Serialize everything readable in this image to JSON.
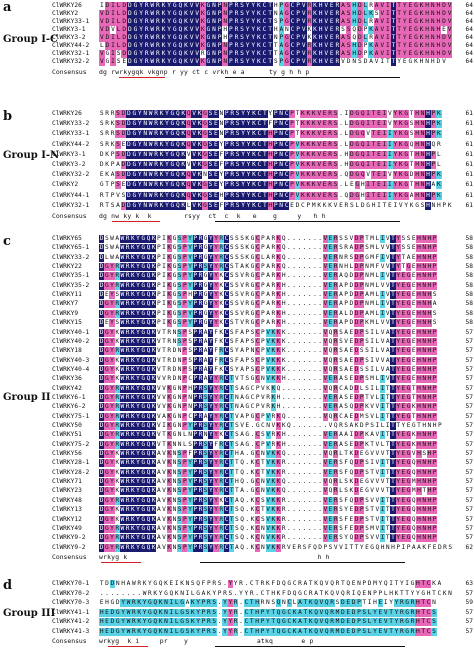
{
  "panels": [
    {
      "letter": "a",
      "group": "Group I-C",
      "rows": [
        {
          "name": "ClWRKY26",
          "seq": "IDILDDGYRWRKYGQKVVKGNPNPRSYYKCTHPGCPVRKHVERASHDLRAVITTYEGKHNHDV",
          "num": "64"
        },
        {
          "name": "ClWRKY2",
          "seq": "VDILDDGYRWRKYGQKVVKGNPNPRSYYKCTNAGCPVRKHVERASHDLKSVITTYEGKHNHDV",
          "num": "64"
        },
        {
          "name": "ClWRKY33-1",
          "seq": "VDILDDGYRWRKYGQKVVKGNPNPRSYYKCTSPGCPVRKHVERASHDLRAVITTYEGKHNHDV",
          "num": "64"
        },
        {
          "name": "ClWRKY3-1",
          "seq": "VDVLDDGYRWRKYGQKVVKGNPHPRSYYKCTHANCPVKKHVERSSQDPKAVITTYEGKHNHEV",
          "num": "64"
        },
        {
          "name": "ClWRKY3-2",
          "seq": "VDILDDGYRWRKYGQKVVKGNPHPRSYYKCTNPGCPVKKHVERASQDLRAVITTYEGKHNHDV",
          "num": "64"
        },
        {
          "name": "ClWRKY44-2",
          "seq": "LDILDDGYRWRKYGQKVVKGNPNPRSYYKCTTAGCPVRKHVERASHDPKAVITTYEGKHNHDV",
          "num": "64"
        },
        {
          "name": "ClWRKY32-1",
          "seq": "VGISDDGYRWRKYGQKVVRGNPNPRSYYKCTTAGCPVRKHVERASHDPKAVITTYEGKHNHDV",
          "num": "64"
        },
        {
          "name": "ClWRKY32-2",
          "seq": "VGISEDGYRWRKYGQKVVKGNPNPRSYYKCTSPGCPVRKHVERVDNSDAVITTYEGKHNHDV",
          "num": "64"
        }
      ],
      "consensus": "dg rwrkygqk vkgnp r yy ct c vrkh e a      ty g h h p"
    },
    {
      "letter": "b",
      "group": "Group I-N",
      "rows": [
        {
          "name": "ClWRKY26",
          "seq": "SRRSDDGYNWRKYGQKQVKGSENPRSYYKCTYPNCPTKKKVERS.IDGQITEIVYKGTHNHPK",
          "num": "61"
        },
        {
          "name": "ClWRKY33-2",
          "seq": "SRKSDDGYNWRKYGQKQVKGSENPRSYYKCTFPNCPTKKKVERS.LDGQITEIVYKGSHNHPK",
          "num": "61"
        },
        {
          "name": "ClWRKY33-1",
          "seq": "SRRSDDGYNWRKYGQKQVKGSENPRSYYKCTHPNCPTKKKVERS.LDGQVTEIIYKGSHNHPK",
          "num": "61"
        },
        {
          "name": "ClWRKY44-2",
          "seq": "SRKSEDGYNWRKYGQKQVKGSEYPRSYYKCTHPNCPVKKKVERS.LDGQITEIIYKGQHNHQR",
          "num": "61"
        },
        {
          "name": "ClWRKY3-1",
          "seq": "DKPSDDGYNWRKYGQKVVKGSEFPRSYYKCTHPNCPVKKKVERS.HDGQITEIIYKGTHNHPL",
          "num": "61"
        },
        {
          "name": "ClWRKY3-2",
          "seq": "DKPADDGYNWRKYGQKVVKGSEFPRSYYKCTHPNCPVKKKVERS.HDGQITEIIYKGTHNHPL",
          "num": "61"
        },
        {
          "name": "ClWRKY32-2",
          "seq": "EKASDDGYNWRKYGQKQVKNSEYPRSYYKCTHPNCPVKKKVERS.QDGQVTEIVYKGDHNHPK",
          "num": "61"
        },
        {
          "name": "ClWRKY2",
          "seq": "GTPSEDGYNWRKYGQKQVKGSEYPRSYYKCTHPNCPVKKKVERS.LEGHITEIIYKGTHNHAK",
          "num": "61"
        },
        {
          "name": "ClWRKY44-1",
          "seq": "RTPVSDGYNWRKYGQKQVKGSEHPRSYYKCTHPNCPVKKKVERS.QDGHITEIIYKGAHNHPK",
          "num": "61"
        },
        {
          "name": "ClWRKY32-1",
          "seq": "RTSADDGYNWRKYGQKLVKGSEFPRSYYKCTHPNCEDCPMKKKVERSLDGHITEIVYKGSHNHPK",
          "num": "61"
        }
      ],
      "consensus": "dg nw ky k  k        rsyy  ct  c  k   e    g     y   h h"
    },
    {
      "letter": "c",
      "group": "Group II",
      "rows": [
        {
          "name": "ClWRKY65",
          "seq": "DSWAWRKYGQKPIKGSPYPRGYYRCSSSKGCPARKQ.......VERSSVDPTMLIVTYSSEHNHP",
          "num": "58"
        },
        {
          "name": "ClWRKY65-1",
          "seq": "DSWAWRKYGQKPIKGSPYPRGYYRCSSSKGCPARKQ.......VERSRADPSMLVVTYSSEHNHP",
          "num": "58"
        },
        {
          "name": "ClWRKY33-2",
          "seq": "DLWAWRKYGQKPIKGSPYPRGYYRCSSSKGCLARKQ.......VERNRSDPGMFIVTYTAEHNHP",
          "num": "58"
        },
        {
          "name": "ClWRKY22",
          "seq": "DGYRWRKYGQKPIKGSPYPRSYYRCSTAKGCPARKQ.......VERNHLDPNMFVVTYTGEHNHP",
          "num": "58"
        },
        {
          "name": "ClWRKY35-1",
          "seq": "DGYRWRKYGQKPIKGSPYPRGYYKCSSVRGCPARKH.......VERAQDDPNMLIVTYEGEHNHP",
          "num": "58"
        },
        {
          "name": "ClWRKY35-2",
          "seq": "DGYRWRKYGQKPIKGSPYPRGYYKCSSVRGCPARKH.......VERAPDDPNMLVVTYEGEHNHP",
          "num": "58"
        },
        {
          "name": "ClWRKY11",
          "seq": "DEYSWRKYGQKPIKGSPHPRGYYKCSSVRGCPARKH.......VERAPDDPAMLIVTYEGEHNHS",
          "num": "58"
        },
        {
          "name": "ClWRKY7",
          "seq": "DGYRWRKYGQKPIKGSPYPRGYYKCSSVRGCPARKH.......VERAPDDPNMLIVTYEGEHNHA",
          "num": "58"
        },
        {
          "name": "ClWRKY9",
          "seq": "DGYRWRKYGQKPIKGSPYPRGYYKCSSVRGCPARKH.......VERALDDPAMLIVTYEGEHNHS",
          "num": "58"
        },
        {
          "name": "ClWRKY15",
          "seq": "DEYSWRKYGQKPIKGSPYPRGYYKCSTVRGCPARKH.......VERAPDDPKMLVVTYEGEHNHS",
          "num": "58"
        },
        {
          "name": "ClWRKY40-1",
          "seq": "DGYKWRKYGQKVTRNSPSPRAYFKCSFAPSCPVKKK.......VQRSAEDPSILVATYEGEHNHP",
          "num": "57"
        },
        {
          "name": "ClWRKY40-2",
          "seq": "DGYKWRKYGQKVTRNSPSPRAYFKCSFAPSCPVKKK.......VQRSVEDPSILVATYEGEHNHP",
          "num": "57"
        },
        {
          "name": "ClWRKY18",
          "seq": "DGYRWRKYGQKVTRDNPSPRAYFRCSYAPNCPVKKK.......VQRSAEDSSILVATYEGEHNHP",
          "num": "57"
        },
        {
          "name": "ClWRKY40-3",
          "seq": "DGYKWRKYGQKVTRDNPSPRAYFRCSFAPSCPVKKK.......VQRSAEDPSIVVATYEGEHNHP",
          "num": "57"
        },
        {
          "name": "ClWRKY40-4",
          "seq": "DGYKWRKYGQKVTRDNPSPRAYFKCSYAPSCPVKKK.......VQRSAEDSSILVATYEGEHNHP",
          "num": "57"
        },
        {
          "name": "ClWRKY36",
          "seq": "DGYKWRKYGQKVVRDNPCPRAYYRCTVTSGCNVKKH.......VERASEDPSMLIVTYEGEHNHP",
          "num": "57"
        },
        {
          "name": "ClWRKY42",
          "seq": "DGYRWRKYGQKVVKGNPHPRSYYRCTSAGCPVKKQ........VQRCADDLSILITTYEGTHNHP",
          "num": "57"
        },
        {
          "name": "ClWRKY6-1",
          "seq": "DGYRWRKYGQKVVKGNPNPRSYYRCTNAGCPVRKH........VERASEDPTVLITTYEGTHNHP",
          "num": "57"
        },
        {
          "name": "ClWRKY6-2",
          "seq": "DGYRWRKYGQKVVKGNPNPRSYYRCTNAGCPVRKH........VERASQDPKVVITTYEGKHNHP",
          "num": "57"
        },
        {
          "name": "ClWRKY75-1",
          "seq": "DGYRWRKYGQKVAKGNPCPRAYYRCTVAPGCPVRKQ.......VQRCAEDMSVLITTYEGTHNHP",
          "num": "57"
        },
        {
          "name": "ClWRKY50",
          "seq": "DGYRWRKYGQKVIKGNPYPRSYYRCTSVE.GCNVKKQ.......VQRSAKDPSILITTYEGTHNHP",
          "num": "57"
        },
        {
          "name": "ClWRKY51",
          "seq": "DGYRWRKYGQKVTKGNLNPRNYYKCTSAG.CSVRKH.......VERAAIDPKAVITTYEGKHNHP",
          "num": "57"
        },
        {
          "name": "ClWRKY75-2",
          "seq": "DGYRWRKYGQKVTKNNLSPRSYFRCTSAG.CPVRKH.......VERASEDPKTVLTTYEGKHNHP",
          "num": "57"
        },
        {
          "name": "ClWRKY56",
          "seq": "DGYKWRKYGQKAVKNSPFPRSYYRCTHA.GCNVKKQ.......VQRLTKDEGVVVTTYEGVHSHP",
          "num": "57"
        },
        {
          "name": "ClWRKY28-1",
          "seq": "DGYKWRKYGQKAVKNSPYPRSYYRCTTQ.KCTVKKR.......VERSFQDPSIVITTYEGQHNHP",
          "num": "57"
        },
        {
          "name": "ClWRKY28-2",
          "seq": "DGYKWRKYGQKAVKNSPYPRSYYRCTTQ.KCTVKKR.......VERSFQDPSTVITTYEGQHNHP",
          "num": "57"
        },
        {
          "name": "ClWRKY71",
          "seq": "DGYKWRKYGQKAVKNSPYPRSYYRCTHQ.GCNVKKQ.......VQRLSKDEGVVVTTYEGMHNHP",
          "num": "57"
        },
        {
          "name": "ClWRKY23",
          "seq": "DGYKWRKYGQKAVKNSPYPRSYYRCTTA.GCNVKKQ.......VQRLSKDEGVVVTTYEGMHTHP",
          "num": "57"
        },
        {
          "name": "ClWRKY48",
          "seq": "DGYRWRKYGQKAVKNSPYPRSYYKCTAQ.KCSVKKR.......VERSFQDPSVVITTYEGQHNHP",
          "num": "57"
        },
        {
          "name": "ClWRKY13",
          "seq": "DGYKWRKYGQKAVKNSPYPRSYYRCTSQ.KCTVKKR.......VERSYEDPSTVITTYEGQHNHP",
          "num": "57"
        },
        {
          "name": "ClWRKY12",
          "seq": "DGYKWRKYGQKAVKNSPYPRSYYRCTSQ.KCSVKKR.......VERSFEDPSTVITTYEGQHNHP",
          "num": "57"
        },
        {
          "name": "ClWRKY49",
          "seq": "DGYRWRKYGQKAVKNSPYPRSYYRCTSQ.KCNVKKR.......VERSFEDPSMVITTYEGQHNHP",
          "num": "57"
        },
        {
          "name": "ClWRKY9-2",
          "seq": "DGYRWRKYGQKAVKNSPYPRSYYRCTSQ.KCNVKKR.......VERSYQDPSVVITTYEGQHNHP",
          "num": "57"
        },
        {
          "name": "ClWRKY9-2",
          "seq": "DGYRWRKYGQKAVKNSPYPRSYYRCTAQ.KCNVKKRVERSFQDPSVVITTYEGQHNHPIPAAKFEDRS",
          "num": "62"
        }
      ],
      "consensus": "wrkyg k                                               h h"
    },
    {
      "letter": "d",
      "group": "Group III",
      "rows": [
        {
          "name": "ClWRKY70-1",
          "seq": "TDDNHAWRKYGQKEIKNSQFPRS.YYR.CTRKFDQGCRATKQVQRTQENPDMYQITYIGHTCKA",
          "num": "63"
        },
        {
          "name": "ClWRKY70-2",
          "seq": "........WRKYGQKNILGAKYPRS.YYR.CTHKFDQGCRATKQVQRIQENPPLHKTTYYGHTCKN",
          "num": "57"
        },
        {
          "name": "ClWRKY70-3",
          "seq": "EHGDYWRKYGQKNILGAKYPRS.YYR.CTHRNSQNCLATKQVQRSDEDPTIHEIYYRGRHTCN",
          "num": "59"
        },
        {
          "name": "ClWRKY41-1",
          "seq": "HEDGYWRKYGQKNILGSKYPRS.YYR.CTHPYTQGCKATKQVQRMDEDPSLYEVTYRGRHTCS",
          "num": "57"
        },
        {
          "name": "ClWRKY41-2",
          "seq": "HEDGYWRKYGQKNILGSKYPRS.YYR.CTHPYTQGCKATKQVQRMDEDPSLYEVTYRGRHTCS",
          "num": "57"
        },
        {
          "name": "ClWRKY41-3",
          "seq": "HEDGYWRKYGQKNILGSKYPRS.YYR.CTHPYTQGCKATKQVQRMDEDPSLYEVTYRGRHTCS",
          "num": "57"
        }
      ],
      "consensus": "wrkyg  k i     pr    y                 atkq       e p"
    }
  ],
  "colors": {
    "identical": "#1a1a6e",
    "high": "#e868b8",
    "medium": "#5ad2e6",
    "underline_red": "#d4202a"
  }
}
